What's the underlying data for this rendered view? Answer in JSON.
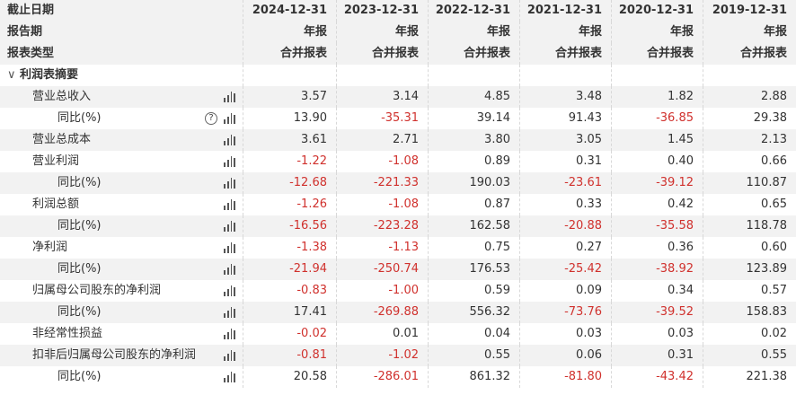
{
  "header": {
    "labels": [
      "截止日期",
      "报告期",
      "报表类型"
    ],
    "dates": [
      "2024-12-31",
      "2023-12-31",
      "2022-12-31",
      "2021-12-31",
      "2020-12-31",
      "2019-12-31"
    ],
    "period": [
      "年报",
      "年报",
      "年报",
      "年报",
      "年报",
      "年报"
    ],
    "type": [
      "合并报表",
      "合并报表",
      "合并报表",
      "合并报表",
      "合并报表",
      "合并报表"
    ]
  },
  "section": {
    "toggle": "∨",
    "label": "利润表摘要"
  },
  "rows": [
    {
      "label": "营业总收入",
      "level": 1,
      "values": [
        "3.57",
        "3.14",
        "4.85",
        "3.48",
        "1.82",
        "2.88"
      ]
    },
    {
      "label": "同比(%)",
      "level": 2,
      "help": "?",
      "values": [
        "13.90",
        "-35.31",
        "39.14",
        "91.43",
        "-36.85",
        "29.38"
      ]
    },
    {
      "label": "营业总成本",
      "level": 1,
      "values": [
        "3.61",
        "2.71",
        "3.80",
        "3.05",
        "1.45",
        "2.13"
      ]
    },
    {
      "label": "营业利润",
      "level": 1,
      "values": [
        "-1.22",
        "-1.08",
        "0.89",
        "0.31",
        "0.40",
        "0.66"
      ]
    },
    {
      "label": "同比(%)",
      "level": 2,
      "values": [
        "-12.68",
        "-221.33",
        "190.03",
        "-23.61",
        "-39.12",
        "110.87"
      ]
    },
    {
      "label": "利润总额",
      "level": 1,
      "values": [
        "-1.26",
        "-1.08",
        "0.87",
        "0.33",
        "0.42",
        "0.65"
      ]
    },
    {
      "label": "同比(%)",
      "level": 2,
      "values": [
        "-16.56",
        "-223.28",
        "162.58",
        "-20.88",
        "-35.58",
        "118.78"
      ]
    },
    {
      "label": "净利润",
      "level": 1,
      "values": [
        "-1.38",
        "-1.13",
        "0.75",
        "0.27",
        "0.36",
        "0.60"
      ]
    },
    {
      "label": "同比(%)",
      "level": 2,
      "values": [
        "-21.94",
        "-250.74",
        "176.53",
        "-25.42",
        "-38.92",
        "123.89"
      ]
    },
    {
      "label": "归属母公司股东的净利润",
      "level": 1,
      "values": [
        "-0.83",
        "-1.00",
        "0.59",
        "0.09",
        "0.34",
        "0.57"
      ]
    },
    {
      "label": "同比(%)",
      "level": 2,
      "values": [
        "17.41",
        "-269.88",
        "556.32",
        "-73.76",
        "-39.52",
        "158.83"
      ]
    },
    {
      "label": "非经常性损益",
      "level": 1,
      "values": [
        "-0.02",
        "0.01",
        "0.04",
        "0.03",
        "0.03",
        "0.02"
      ]
    },
    {
      "label": "扣非后归属母公司股东的净利润",
      "level": 1,
      "values": [
        "-0.81",
        "-1.02",
        "0.55",
        "0.06",
        "0.31",
        "0.55"
      ]
    },
    {
      "label": "同比(%)",
      "level": 2,
      "values": [
        "20.58",
        "-286.01",
        "861.32",
        "-81.80",
        "-43.42",
        "221.38"
      ]
    }
  ]
}
